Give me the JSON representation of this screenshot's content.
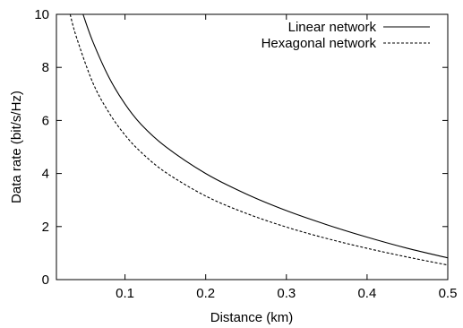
{
  "chart_data": {
    "type": "line",
    "xlabel": "Distance (km)",
    "ylabel": "Data rate (bit/s/Hz)",
    "xlim": [
      0.015,
      0.5
    ],
    "ylim": [
      0,
      10
    ],
    "xticks": [
      0.1,
      0.2,
      0.3,
      0.4,
      0.5
    ],
    "xtick_labels": [
      "0.1",
      "0.2",
      "0.3",
      "0.4",
      "0.5"
    ],
    "yticks": [
      0,
      2,
      4,
      6,
      8,
      10
    ],
    "ytick_labels": [
      "0",
      "2",
      "4",
      "6",
      "8",
      "10"
    ],
    "grid": false,
    "legend_position": "top-right",
    "series": [
      {
        "name": "Linear network",
        "line_style": "solid",
        "color": "#000000",
        "x": [
          0.048,
          0.06,
          0.08,
          0.1,
          0.12,
          0.15,
          0.2,
          0.25,
          0.3,
          0.35,
          0.4,
          0.45,
          0.5
        ],
        "y": [
          10.0,
          8.98,
          7.63,
          6.62,
          5.85,
          5.02,
          4.0,
          3.23,
          2.6,
          2.07,
          1.6,
          1.18,
          0.82
        ]
      },
      {
        "name": "Hexagonal network",
        "line_style": "dashed",
        "color": "#000000",
        "x": [
          0.032,
          0.04,
          0.06,
          0.08,
          0.1,
          0.12,
          0.15,
          0.2,
          0.25,
          0.3,
          0.35,
          0.4,
          0.45,
          0.5
        ],
        "y": [
          10.0,
          9.12,
          7.43,
          6.3,
          5.45,
          4.8,
          4.05,
          3.15,
          2.5,
          1.98,
          1.55,
          1.18,
          0.85,
          0.55
        ]
      }
    ]
  }
}
